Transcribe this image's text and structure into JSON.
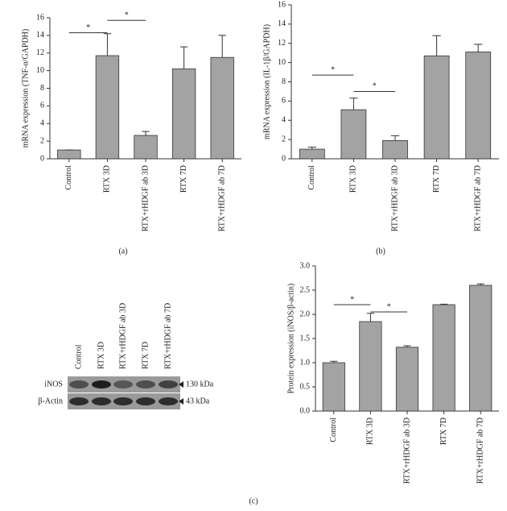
{
  "chart_data": [
    {
      "type": "bar",
      "ylabel": "mRNA expression (TNF-α/GAPDH)",
      "panel": "(a)",
      "categories": [
        "Control",
        "RTX 3D",
        "RTX+rHDGF ab 3D",
        "RTX 7D",
        "RTX+rHDGF ab 7D"
      ],
      "values": [
        1.0,
        11.7,
        2.65,
        10.2,
        11.5
      ],
      "errors": [
        0,
        2.5,
        0.45,
        2.5,
        2.5
      ],
      "color": "#a3a3a3",
      "ylim": [
        0,
        16
      ],
      "yticks": [
        0,
        2,
        4,
        6,
        8,
        10,
        12,
        14,
        16
      ],
      "annotations": [
        {
          "text": "*",
          "x": [
            0,
            1
          ],
          "y": 14.3
        },
        {
          "text": "*",
          "x": [
            1,
            2
          ],
          "y": 15.7
        }
      ]
    },
    {
      "type": "bar",
      "ylabel": "mRNA expression (IL-1β/GAPDH)",
      "panel": "(b)",
      "categories": [
        "Control",
        "RTX 3D",
        "RTX+rHDGF ab 3D",
        "RTX 7D",
        "RTX+rHDGF ab 7D"
      ],
      "values": [
        1.0,
        5.1,
        1.9,
        10.7,
        11.1
      ],
      "errors": [
        0.2,
        1.2,
        0.5,
        2.1,
        0.8
      ],
      "color": "#a3a3a3",
      "ylim": [
        0,
        16
      ],
      "yticks": [
        0,
        2,
        4,
        6,
        8,
        10,
        12,
        14,
        16
      ],
      "annotations": [
        {
          "text": "*",
          "x": [
            0,
            1
          ],
          "y": 8.7
        },
        {
          "text": "*",
          "x": [
            1,
            2
          ],
          "y": 7.0
        }
      ]
    },
    {
      "type": "bar",
      "ylabel": "Protein expression (iNOS/β-actin)",
      "panel": "(c)",
      "categories": [
        "Control",
        "RTX 3D",
        "RTX+rHDGF ab 3D",
        "RTX 7D",
        "RTX+rHDGF ab 7D"
      ],
      "values": [
        1.0,
        1.85,
        1.32,
        2.2,
        2.6
      ],
      "errors": [
        0.03,
        0.17,
        0.03,
        0.01,
        0.03
      ],
      "color": "#a3a3a3",
      "ylim": [
        0,
        3
      ],
      "yticks": [
        {
          "value": 0,
          "label": "0.0"
        },
        {
          "value": 0.5,
          "label": "0.5"
        },
        {
          "value": 1,
          "label": "1.0"
        },
        {
          "value": 1.5,
          "label": "1.5"
        },
        {
          "value": 2,
          "label": "2.0"
        },
        {
          "value": 2.5,
          "label": "2.5"
        },
        {
          "value": 3,
          "label": "3.0"
        }
      ],
      "annotations": [
        {
          "text": "*",
          "x": [
            0,
            1
          ],
          "y": 2.2
        },
        {
          "text": "*",
          "x": [
            1,
            2
          ],
          "y": 2.05
        }
      ]
    }
  ],
  "blot": {
    "lanes": [
      "Control",
      "RTX 3D",
      "RTX+rHDGF ab 3D",
      "RTX 7D",
      "RTX+rHDGF ab 7D"
    ],
    "rows": [
      {
        "label": "iNOS",
        "size": "130 kDa"
      },
      {
        "label": "β-Actin",
        "size": "43 kDa"
      }
    ]
  }
}
